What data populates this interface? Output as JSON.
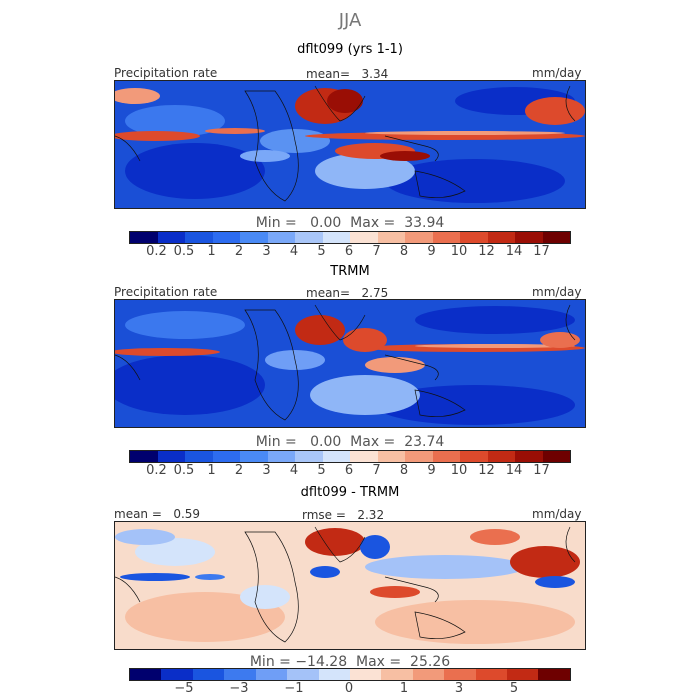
{
  "season": "JJA",
  "panels": [
    {
      "title": "dflt099 (yrs 1-1)",
      "left_label": "Precipitation rate",
      "center_label": "mean=   3.34",
      "right_label": "mm/day",
      "minmax": "Min =   0.00  Max =  33.94",
      "tick_labels": [
        "0.2",
        "0.5",
        "1",
        "2",
        "3",
        "4",
        "5",
        "6",
        "7",
        "8",
        "9",
        "10",
        "12",
        "14",
        "17"
      ]
    },
    {
      "title": "TRMM",
      "left_label": "Precipitation rate",
      "center_label": "mean=   2.75",
      "right_label": "mm/day",
      "minmax": "Min =   0.00  Max =  23.74",
      "tick_labels": [
        "0.2",
        "0.5",
        "1",
        "2",
        "3",
        "4",
        "5",
        "6",
        "7",
        "8",
        "9",
        "10",
        "12",
        "14",
        "17"
      ]
    },
    {
      "title": "dflt099 - TRMM",
      "left_label": "mean =   0.59",
      "center_label": "rmse =   2.32",
      "right_label": "mm/day",
      "minmax": "Min = −14.28  Max =  25.26",
      "tick_labels": [
        "−5",
        "−3",
        "−1",
        "0",
        "1",
        "3",
        "5"
      ]
    }
  ],
  "colors": {
    "precip_scale": [
      "#00006e",
      "#0a2ec8",
      "#1a55e0",
      "#2d6cf0",
      "#4a8af5",
      "#7aa8f8",
      "#a9c6f8",
      "#d4e4fb",
      "#fbe2d4",
      "#f7bfa3",
      "#f29a7a",
      "#ea6f4f",
      "#dd4a2c",
      "#c22a14",
      "#9a0e05",
      "#6e0000"
    ],
    "diff_scale": [
      "#00006e",
      "#0a2ec8",
      "#1a55e0",
      "#3d7aef",
      "#6f9ef6",
      "#a4c2f8",
      "#d4e4fb",
      "#fbe2d4",
      "#f7bfa3",
      "#f29a7a",
      "#ea6f4f",
      "#dd4a2c",
      "#c22a14",
      "#6e0000"
    ]
  }
}
